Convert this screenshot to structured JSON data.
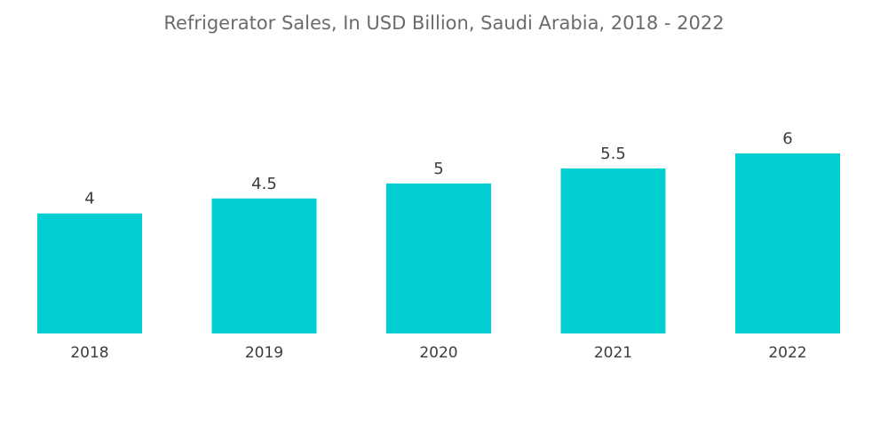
{
  "chart_data": {
    "type": "bar",
    "title": "Refrigerator Sales, In USD Billion, Saudi Arabia, 2018 - 2022",
    "categories": [
      "2018",
      "2019",
      "2020",
      "2021",
      "2022"
    ],
    "values": [
      4,
      4.5,
      5,
      5.5,
      6
    ],
    "data_labels": [
      "4",
      "4.5",
      "5",
      "5.5",
      "6"
    ],
    "xlabel": "",
    "ylabel": "",
    "ylim": [
      0,
      7.05
    ],
    "bar_color": "#00CED1",
    "grid": false,
    "legend": "none"
  }
}
